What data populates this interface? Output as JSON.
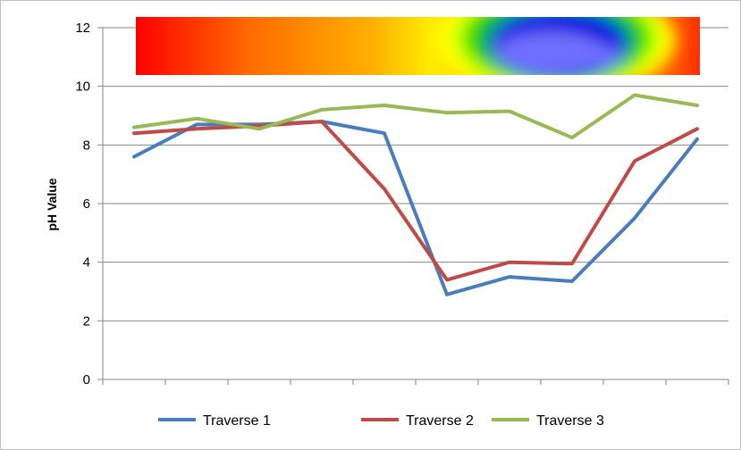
{
  "chart_data": {
    "type": "line",
    "title": "",
    "xlabel": "",
    "ylabel": "pH Value",
    "ylim": [
      0,
      12
    ],
    "yticks": [
      0,
      2,
      4,
      6,
      8,
      10,
      12
    ],
    "x": [
      1,
      2,
      3,
      4,
      5,
      6,
      7,
      8,
      9,
      10
    ],
    "grid": "horizontal",
    "legend": "bottom",
    "series": [
      {
        "name": "Traverse 1",
        "color": "#4a7ebb",
        "values": [
          7.6,
          8.7,
          8.7,
          8.8,
          8.4,
          2.9,
          3.5,
          3.35,
          5.5,
          8.2
        ]
      },
      {
        "name": "Traverse 2",
        "color": "#be4b48",
        "values": [
          8.4,
          8.55,
          8.65,
          8.8,
          6.5,
          3.4,
          4.0,
          3.95,
          7.45,
          8.55
        ]
      },
      {
        "name": "Traverse 3",
        "color": "#98b954",
        "values": [
          8.6,
          8.9,
          8.55,
          9.2,
          9.35,
          9.1,
          9.15,
          8.25,
          9.7,
          9.35
        ]
      }
    ],
    "heatmap_inset": {
      "type": "heatmap",
      "colormap": [
        "#ff0000",
        "#ff8c00",
        "#ffd700",
        "#ffff00",
        "#7fff00",
        "#00c800",
        "#0000e6",
        "#7f7fff"
      ]
    }
  }
}
